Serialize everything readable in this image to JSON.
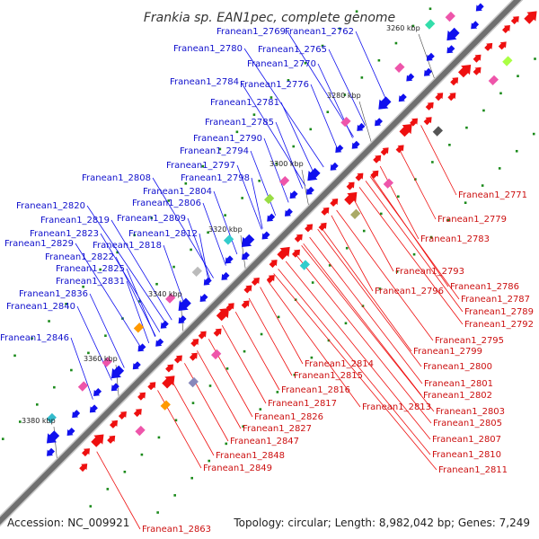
{
  "title": "Frankia sp. EAN1pec, complete genome",
  "accession": "Accession: NC_009921",
  "topology": "Topology: circular; Length: 8,982,042 bp; Genes: 7,249",
  "scale_ticks": [
    {
      "label": "3260 kbp"
    },
    {
      "label": "3280 kbp"
    },
    {
      "label": "3300 kbp"
    },
    {
      "label": "3320 kbp"
    },
    {
      "label": "3340 kbp"
    },
    {
      "label": "3360 kbp"
    },
    {
      "label": "3380 kbp"
    }
  ],
  "blue_labels": [
    "Franean1_2769",
    "Franean1_2762",
    "Franean1_2780",
    "Franean1_2765",
    "Franean1_2770",
    "Franean1_2784",
    "Franean1_2776",
    "Franean1_2781",
    "Franean1_2785",
    "Franean1_2790",
    "Franean1_2794",
    "Franean1_2797",
    "Franean1_2808",
    "Franean1_2798",
    "Franean1_2804",
    "Franean1_2806",
    "Franean1_2820",
    "Franean1_2809",
    "Franean1_2819",
    "Franean1_2823",
    "Franean1_2812",
    "Franean1_2829",
    "Franean1_2818",
    "Franean1_2822",
    "Franean1_2825",
    "Franean1_2831",
    "Franean1_2836",
    "Franean1_2840",
    "Franean1_2846"
  ],
  "red_labels": [
    "Franean1_2771",
    "Franean1_2779",
    "Franean1_2783",
    "Franean1_2793",
    "Franean1_2786",
    "Franean1_2796",
    "Franean1_2787",
    "Franean1_2789",
    "Franean1_2792",
    "Franean1_2795",
    "Franean1_2799",
    "Franean1_2800",
    "Franean1_2814",
    "Franean1_2801",
    "Franean1_2815",
    "Franean1_2802",
    "Franean1_2816",
    "Franean1_2813",
    "Franean1_2803",
    "Franean1_2817",
    "Franean1_2805",
    "Franean1_2826",
    "Franean1_2827",
    "Franean1_2807",
    "Franean1_2847",
    "Franean1_2810",
    "Franean1_2848",
    "Franean1_2811",
    "Franean1_2849",
    "Franean1_2863"
  ],
  "colors": {
    "forward": "#1010ee",
    "reverse": "#ee1010",
    "backbone": "#777777",
    "label_blue": "#1010cc",
    "label_red": "#cc1010",
    "tick": "#1a8a1a"
  }
}
